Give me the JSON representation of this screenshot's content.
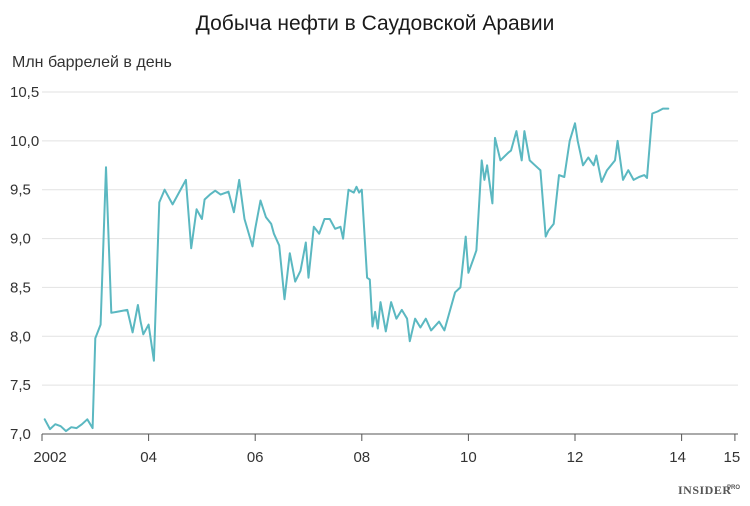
{
  "chart_data": {
    "type": "line",
    "title": "Добыча нефти в Саудовской Аравии",
    "ylabel": "Млн баррелей в день",
    "xlabel": "",
    "ylim": [
      7.0,
      10.5
    ],
    "xlim": [
      2002.0,
      2015.5
    ],
    "y_ticks": [
      7.0,
      7.5,
      8.0,
      8.5,
      9.0,
      9.5,
      10.0,
      10.5
    ],
    "y_tick_labels": [
      "7,0",
      "7,5",
      "8,0",
      "8,5",
      "9,0",
      "9,5",
      "10,0",
      "10,5"
    ],
    "x_ticks": [
      2002,
      2004,
      2006,
      2008,
      2010,
      2012,
      2014,
      2015
    ],
    "x_tick_labels": [
      "2002",
      "04",
      "06",
      "08",
      "10",
      "12",
      "14",
      "15"
    ],
    "grid": true,
    "series": [
      {
        "color": "#5bb8c1",
        "x": [
          2002.05,
          2002.15,
          2002.25,
          2002.35,
          2002.45,
          2002.55,
          2002.65,
          2002.75,
          2002.85,
          2002.95,
          2003.0,
          2003.1,
          2003.2,
          2003.3,
          2003.4,
          2003.6,
          2003.7,
          2003.8,
          2003.85,
          2003.9,
          2004.0,
          2004.1,
          2004.2,
          2004.3,
          2004.45,
          2004.55,
          2004.7,
          2004.8,
          2004.9,
          2005.0,
          2005.05,
          2005.15,
          2005.25,
          2005.35,
          2005.5,
          2005.6,
          2005.7,
          2005.8,
          2005.95,
          2006.0,
          2006.1,
          2006.2,
          2006.3,
          2006.35,
          2006.45,
          2006.55,
          2006.65,
          2006.75,
          2006.85,
          2006.95,
          2007.0,
          2007.1,
          2007.2,
          2007.3,
          2007.4,
          2007.5,
          2007.6,
          2007.65,
          2007.75,
          2007.85,
          2007.9,
          2007.95,
          2008.0,
          2008.1,
          2008.15,
          2008.2,
          2008.25,
          2008.3,
          2008.35,
          2008.45,
          2008.55,
          2008.65,
          2008.75,
          2008.85,
          2008.9,
          2009.0,
          2009.1,
          2009.2,
          2009.3,
          2009.45,
          2009.55,
          2009.75,
          2009.85,
          2009.95,
          2010.0,
          2010.1,
          2010.15,
          2010.25,
          2010.3,
          2010.35,
          2010.45,
          2010.5,
          2010.6,
          2010.75,
          2010.8,
          2010.9,
          2011.0,
          2011.05,
          2011.15,
          2011.25,
          2011.35,
          2011.45,
          2011.5,
          2011.6,
          2011.7,
          2011.8,
          2011.9,
          2012.0,
          2012.05,
          2012.15,
          2012.25,
          2012.35,
          2012.4,
          2012.5,
          2012.6,
          2012.75,
          2012.8,
          2012.9,
          2013.0,
          2013.1,
          2013.2,
          2013.3,
          2013.35,
          2013.45,
          2013.55,
          2013.65,
          2013.75
        ],
        "y": [
          7.15,
          7.05,
          7.1,
          7.08,
          7.03,
          7.07,
          7.06,
          7.1,
          7.15,
          7.06,
          7.98,
          8.12,
          9.73,
          8.24,
          8.25,
          8.27,
          8.04,
          8.32,
          8.15,
          8.02,
          8.12,
          7.75,
          9.37,
          9.5,
          9.35,
          9.45,
          9.6,
          8.9,
          9.3,
          9.2,
          9.4,
          9.45,
          9.49,
          9.45,
          9.48,
          9.27,
          9.6,
          9.2,
          8.92,
          9.1,
          9.39,
          9.22,
          9.15,
          9.05,
          8.93,
          8.38,
          8.85,
          8.56,
          8.67,
          8.96,
          8.6,
          9.12,
          9.05,
          9.2,
          9.2,
          9.1,
          9.12,
          9.0,
          9.5,
          9.47,
          9.53,
          9.47,
          9.5,
          8.6,
          8.58,
          8.1,
          8.25,
          8.08,
          8.35,
          8.05,
          8.35,
          8.18,
          8.27,
          8.18,
          7.95,
          8.18,
          8.09,
          8.18,
          8.06,
          8.15,
          8.06,
          8.45,
          8.5,
          9.02,
          8.65,
          8.8,
          8.88,
          9.8,
          9.6,
          9.75,
          9.36,
          10.03,
          9.8,
          9.88,
          9.9,
          10.1,
          9.8,
          10.1,
          9.8,
          9.75,
          9.7,
          9.02,
          9.08,
          9.15,
          9.65,
          9.63,
          10.0,
          10.18,
          10.0,
          9.75,
          9.83,
          9.75,
          9.85,
          9.58,
          9.7,
          9.8,
          10.0,
          9.6,
          9.7,
          9.6,
          9.63,
          9.65,
          9.62,
          10.28,
          10.3,
          10.33,
          10.33
        ]
      }
    ]
  },
  "brand": {
    "logo_text": "INSIDER",
    "logo_sup": "PRO"
  }
}
